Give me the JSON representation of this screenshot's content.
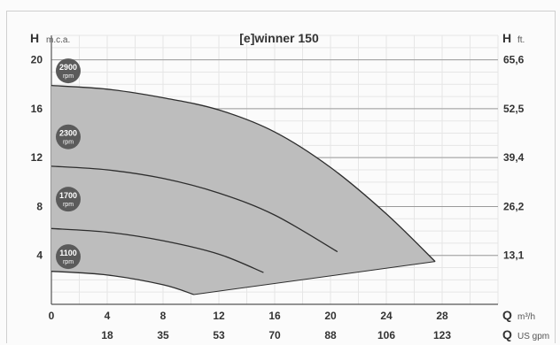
{
  "chart_data": {
    "type": "line",
    "title": "[e]winner 150",
    "left_axis": {
      "symbol": "H",
      "unit": "m.c.a.",
      "ticks": [
        4,
        8,
        12,
        16,
        20
      ],
      "range": [
        0,
        22
      ]
    },
    "right_axis": {
      "symbol": "H",
      "unit": "ft.",
      "ticks": [
        "13,1",
        "26,2",
        "39,4",
        "52,5",
        "65,6"
      ],
      "tick_positions": [
        4,
        8,
        12,
        16,
        20
      ]
    },
    "bottom_axis_1": {
      "symbol": "Q",
      "unit": "m³/h",
      "ticks": [
        0,
        4,
        8,
        12,
        16,
        20,
        24,
        28
      ],
      "range": [
        0,
        32
      ]
    },
    "bottom_axis_2": {
      "symbol": "Q",
      "unit": "US gpm",
      "ticks": [
        "18",
        "35",
        "53",
        "70",
        "88",
        "106",
        "123"
      ],
      "tick_positions": [
        4,
        8,
        12,
        16,
        20,
        24,
        28
      ]
    },
    "grid": true,
    "series": [
      {
        "name": "2900 rpm",
        "points": [
          [
            0,
            17.9
          ],
          [
            4,
            17.6
          ],
          [
            8,
            16.9
          ],
          [
            12,
            15.9
          ],
          [
            16,
            14.1
          ],
          [
            20,
            11.2
          ],
          [
            24,
            7.4
          ],
          [
            27.5,
            3.5
          ]
        ]
      },
      {
        "name": "2300 rpm",
        "points": [
          [
            0,
            11.3
          ],
          [
            4,
            11.0
          ],
          [
            8,
            10.3
          ],
          [
            12,
            9.1
          ],
          [
            16,
            7.3
          ],
          [
            20.5,
            4.3
          ]
        ]
      },
      {
        "name": "1700 rpm",
        "points": [
          [
            0,
            6.2
          ],
          [
            4,
            5.9
          ],
          [
            8,
            5.2
          ],
          [
            12,
            4.1
          ],
          [
            15.2,
            2.6
          ]
        ]
      },
      {
        "name": "1100 rpm",
        "points": [
          [
            0,
            2.7
          ],
          [
            4,
            2.4
          ],
          [
            8,
            1.6
          ],
          [
            10.2,
            0.8
          ]
        ]
      }
    ],
    "operating_area": {
      "upper": "2900 rpm",
      "lower_edge": [
        [
          10.2,
          0.8
        ],
        [
          27.5,
          3.5
        ]
      ],
      "color": "#bdbdbd"
    },
    "rpm_badges": [
      "2900",
      "2300",
      "1700",
      "1100"
    ],
    "rpm_unit": "rpm"
  }
}
